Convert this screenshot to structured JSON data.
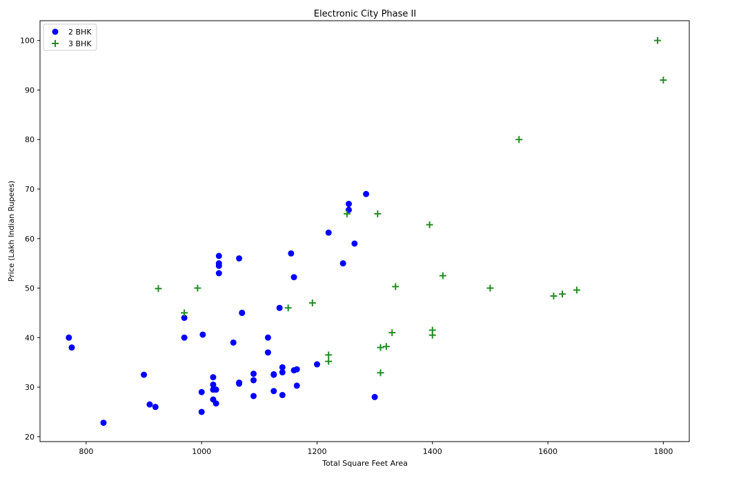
{
  "chart_data": {
    "type": "scatter",
    "title": "Electronic City Phase II",
    "xlabel": "Total Square Feet Area",
    "ylabel": "Price (Lakh Indian Rupees)",
    "xlim": [
      720,
      1845
    ],
    "ylim": [
      19,
      104
    ],
    "xticks": [
      800,
      1000,
      1200,
      1400,
      1600,
      1800
    ],
    "yticks": [
      20,
      30,
      40,
      50,
      60,
      70,
      80,
      90,
      100
    ],
    "grid": false,
    "legend_position": "upper-left",
    "series": [
      {
        "name": "2 BHK",
        "marker": "circle",
        "color": "#0000ff",
        "points": [
          [
            770,
            40
          ],
          [
            775,
            38
          ],
          [
            830,
            22.8
          ],
          [
            900,
            32.5
          ],
          [
            910,
            26.5
          ],
          [
            920,
            26
          ],
          [
            970,
            44
          ],
          [
            970,
            40
          ],
          [
            1000,
            29
          ],
          [
            1000,
            25
          ],
          [
            1002,
            40.6
          ],
          [
            1020,
            32
          ],
          [
            1020,
            30.5
          ],
          [
            1020,
            29.5
          ],
          [
            1020,
            27.5
          ],
          [
            1025,
            29.5
          ],
          [
            1025,
            26.7
          ],
          [
            1030,
            56.5
          ],
          [
            1030,
            55
          ],
          [
            1030,
            54.5
          ],
          [
            1030,
            53
          ],
          [
            1055,
            39
          ],
          [
            1065,
            56
          ],
          [
            1065,
            30.9
          ],
          [
            1065,
            30.7
          ],
          [
            1070,
            45
          ],
          [
            1070,
            45
          ],
          [
            1090,
            32.7
          ],
          [
            1090,
            31.4
          ],
          [
            1090,
            28.2
          ],
          [
            1115,
            40
          ],
          [
            1115,
            37
          ],
          [
            1125,
            32.6
          ],
          [
            1125,
            32.5
          ],
          [
            1125,
            29.2
          ],
          [
            1135,
            46
          ],
          [
            1140,
            34
          ],
          [
            1140,
            33
          ],
          [
            1140,
            28.4
          ],
          [
            1155,
            57
          ],
          [
            1160,
            52.2
          ],
          [
            1160,
            33.4
          ],
          [
            1165,
            33.6
          ],
          [
            1165,
            30.3
          ],
          [
            1200,
            34.6
          ],
          [
            1220,
            61.2
          ],
          [
            1245,
            55
          ],
          [
            1255,
            67
          ],
          [
            1255,
            65.8
          ],
          [
            1265,
            59
          ],
          [
            1285,
            69
          ],
          [
            1300,
            28
          ]
        ]
      },
      {
        "name": "3 BHK",
        "marker": "plus",
        "color": "#228b22",
        "points": [
          [
            925,
            49.9
          ],
          [
            970,
            45
          ],
          [
            993,
            50
          ],
          [
            1150,
            46
          ],
          [
            1192,
            47
          ],
          [
            1220,
            36.5
          ],
          [
            1220,
            35.2
          ],
          [
            1252,
            65
          ],
          [
            1305,
            65
          ],
          [
            1310,
            38
          ],
          [
            1310,
            32.9
          ],
          [
            1320,
            38.2
          ],
          [
            1330,
            41
          ],
          [
            1336,
            50.3
          ],
          [
            1395,
            62.8
          ],
          [
            1400,
            41.5
          ],
          [
            1400,
            40.5
          ],
          [
            1418,
            52.5
          ],
          [
            1500,
            50
          ],
          [
            1550,
            80
          ],
          [
            1610,
            48.4
          ],
          [
            1625,
            48.8
          ],
          [
            1650,
            49.6
          ],
          [
            1790,
            100
          ],
          [
            1800,
            92
          ]
        ]
      }
    ]
  }
}
